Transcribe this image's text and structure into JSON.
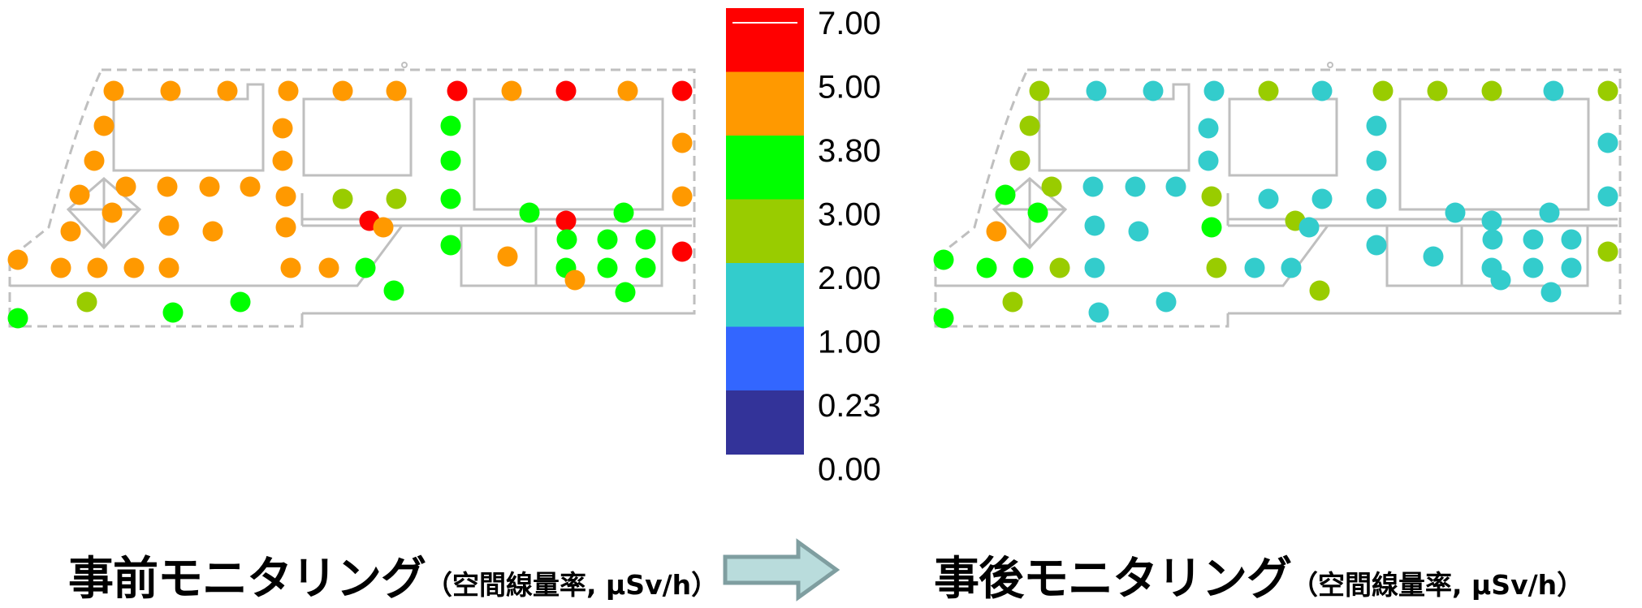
{
  "legend": {
    "bands": [
      {
        "lower": "5.00",
        "upper": "7.00",
        "color": "#ff0000"
      },
      {
        "lower": "3.80",
        "upper": "5.00",
        "color": "#ff9900"
      },
      {
        "lower": "3.00",
        "upper": "3.80",
        "color": "#00ff00"
      },
      {
        "lower": "2.00",
        "upper": "3.00",
        "color": "#99cc00"
      },
      {
        "lower": "1.00",
        "upper": "2.00",
        "color": "#33cccc"
      },
      {
        "lower": "0.23",
        "upper": "1.00",
        "color": "#3366ff"
      },
      {
        "lower": "0.00",
        "upper": "0.23",
        "color": "#333399"
      }
    ],
    "tick_labels": [
      "7.00",
      "5.00",
      "3.80",
      "3.00",
      "2.00",
      "1.00",
      "0.23",
      "0.00"
    ]
  },
  "captions": {
    "before": {
      "title": "事前モニタリング",
      "unit": "（空間線量率, μSv/h）"
    },
    "after": {
      "title": "事後モニタリング",
      "unit": "（空間線量率, μSv/h）"
    }
  },
  "arrow": {
    "fill": "#b9dcdc",
    "stroke": "#7f9ea0"
  },
  "maps": {
    "before": {
      "points": [
        {
          "band": "3.80-5.00"
        },
        {
          "band": "3.80-5.00"
        },
        {
          "band": "3.80-5.00"
        },
        {
          "band": "3.80-5.00"
        },
        {
          "band": "3.80-5.00"
        },
        {
          "band": "3.80-5.00"
        },
        {
          "band": "5.00-7.00"
        },
        {
          "band": "3.80-5.00"
        },
        {
          "band": "5.00-7.00"
        },
        {
          "band": "3.80-5.00"
        },
        {
          "band": "5.00-7.00"
        },
        {
          "band": "3.80-5.00"
        },
        {
          "band": "3.80-5.00"
        },
        {
          "band": "3.00-3.80"
        },
        {
          "band": "3.80-5.00"
        },
        {
          "band": "3.80-5.00"
        },
        {
          "band": "3.80-5.00"
        },
        {
          "band": "3.00-3.80"
        },
        {
          "band": "3.80-5.00"
        },
        {
          "band": "3.80-5.00"
        },
        {
          "band": "3.80-5.00"
        },
        {
          "band": "3.80-5.00"
        },
        {
          "band": "3.80-5.00"
        },
        {
          "band": "3.80-5.00"
        },
        {
          "band": "2.00-3.00"
        },
        {
          "band": "2.00-3.00"
        },
        {
          "band": "3.00-3.80"
        },
        {
          "band": "3.80-5.00"
        },
        {
          "band": "3.80-5.00"
        },
        {
          "band": "3.80-5.00"
        },
        {
          "band": "3.80-5.00"
        },
        {
          "band": "3.80-5.00"
        },
        {
          "band": "3.80-5.00"
        },
        {
          "band": "5.00-7.00"
        },
        {
          "band": "3.80-5.00"
        },
        {
          "band": "3.00-3.80"
        },
        {
          "band": "5.00-7.00"
        },
        {
          "band": "3.00-3.80"
        },
        {
          "band": "3.00-3.80"
        },
        {
          "band": "3.00-3.80"
        },
        {
          "band": "3.00-3.80"
        },
        {
          "band": "3.80-5.00"
        },
        {
          "band": "3.80-5.00"
        },
        {
          "band": "3.80-5.00"
        },
        {
          "band": "3.80-5.00"
        },
        {
          "band": "3.80-5.00"
        },
        {
          "band": "3.80-5.00"
        },
        {
          "band": "3.80-5.00"
        },
        {
          "band": "3.00-3.80"
        },
        {
          "band": "3.00-3.80"
        },
        {
          "band": "3.80-5.00"
        },
        {
          "band": "3.00-3.80"
        },
        {
          "band": "3.00-3.80"
        },
        {
          "band": "3.00-3.80"
        },
        {
          "band": "5.00-7.00"
        },
        {
          "band": "3.00-3.80"
        },
        {
          "band": "3.80-5.00"
        },
        {
          "band": "2.00-3.00"
        },
        {
          "band": "3.00-3.80"
        },
        {
          "band": "3.00-3.80"
        },
        {
          "band": "3.00-3.80"
        },
        {
          "band": "3.00-3.80"
        }
      ]
    },
    "after": {
      "points": [
        {
          "band": "2.00-3.00"
        },
        {
          "band": "1.00-2.00"
        },
        {
          "band": "1.00-2.00"
        },
        {
          "band": "1.00-2.00"
        },
        {
          "band": "2.00-3.00"
        },
        {
          "band": "1.00-2.00"
        },
        {
          "band": "2.00-3.00"
        },
        {
          "band": "2.00-3.00"
        },
        {
          "band": "2.00-3.00"
        },
        {
          "band": "1.00-2.00"
        },
        {
          "band": "2.00-3.00"
        },
        {
          "band": "2.00-3.00"
        },
        {
          "band": "1.00-2.00"
        },
        {
          "band": "1.00-2.00"
        },
        {
          "band": "1.00-2.00"
        },
        {
          "band": "2.00-3.00"
        },
        {
          "band": "1.00-2.00"
        },
        {
          "band": "1.00-2.00"
        },
        {
          "band": "3.00-3.80"
        },
        {
          "band": "2.00-3.00"
        },
        {
          "band": "1.00-2.00"
        },
        {
          "band": "1.00-2.00"
        },
        {
          "band": "1.00-2.00"
        },
        {
          "band": "2.00-3.00"
        },
        {
          "band": "1.00-2.00"
        },
        {
          "band": "1.00-2.00"
        },
        {
          "band": "1.00-2.00"
        },
        {
          "band": "1.00-2.00"
        },
        {
          "band": "3.80-5.00"
        },
        {
          "band": "3.00-3.80"
        },
        {
          "band": "1.00-2.00"
        },
        {
          "band": "1.00-2.00"
        },
        {
          "band": "3.00-3.80"
        },
        {
          "band": "2.00-3.00"
        },
        {
          "band": "1.00-2.00"
        },
        {
          "band": "1.00-2.00"
        },
        {
          "band": "1.00-2.00"
        },
        {
          "band": "1.00-2.00"
        },
        {
          "band": "1.00-2.00"
        },
        {
          "band": "1.00-2.00"
        },
        {
          "band": "1.00-2.00"
        },
        {
          "band": "3.00-3.80"
        },
        {
          "band": "3.00-3.80"
        },
        {
          "band": "3.00-3.80"
        },
        {
          "band": "2.00-3.00"
        },
        {
          "band": "1.00-2.00"
        },
        {
          "band": "2.00-3.00"
        },
        {
          "band": "1.00-2.00"
        },
        {
          "band": "1.00-2.00"
        },
        {
          "band": "1.00-2.00"
        },
        {
          "band": "1.00-2.00"
        },
        {
          "band": "1.00-2.00"
        },
        {
          "band": "1.00-2.00"
        },
        {
          "band": "1.00-2.00"
        },
        {
          "band": "2.00-3.00"
        },
        {
          "band": "1.00-2.00"
        },
        {
          "band": "1.00-2.00"
        },
        {
          "band": "2.00-3.00"
        },
        {
          "band": "1.00-2.00"
        },
        {
          "band": "1.00-2.00"
        },
        {
          "band": "3.00-3.80"
        },
        {
          "band": "2.00-3.00"
        }
      ]
    }
  }
}
